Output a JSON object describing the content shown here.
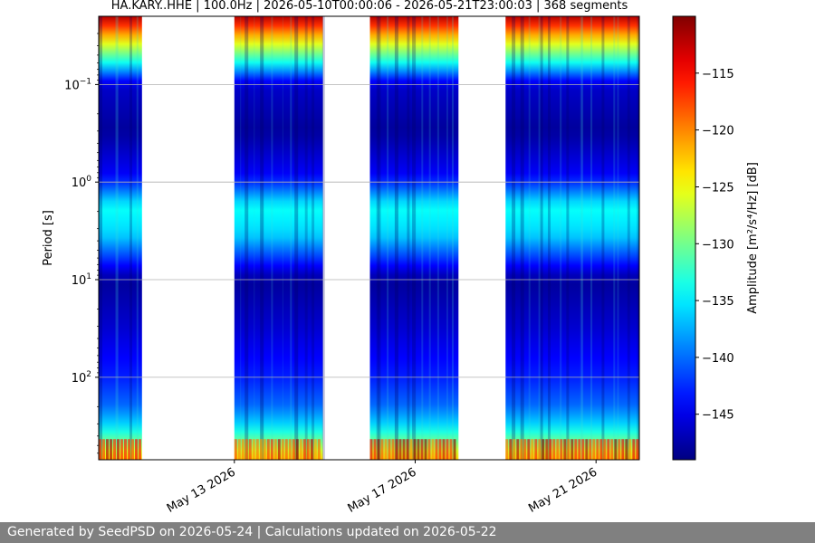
{
  "chart_data": {
    "type": "heatmap",
    "title": "HA.KARY..HHE | 100.0Hz | 2026-05-10T00:00:06 - 2026-05-21T23:00:03 | 368 segments",
    "xlabel": "",
    "ylabel": "Period [s]",
    "colorbar_label": "Amplitude [m²/s⁴/Hz] [dB]",
    "colormap": "jet",
    "x_ticks": [
      "May 13 2026",
      "May 17 2026",
      "May 21 2026"
    ],
    "x_tick_dates": [
      "2026-05-13",
      "2026-05-17",
      "2026-05-21"
    ],
    "x_range": [
      "2026-05-10T00:00:06",
      "2026-05-21T23:00:03"
    ],
    "y_scale": "log",
    "y_range_period_s": [
      0.02,
      700
    ],
    "y_inverted": true,
    "y_ticks": [
      {
        "value": 0.1,
        "base": "10",
        "exp": "−1"
      },
      {
        "value": 1,
        "base": "10",
        "exp": "0"
      },
      {
        "value": 10,
        "base": "10",
        "exp": "1"
      },
      {
        "value": 100,
        "base": "10",
        "exp": "2"
      }
    ],
    "colorbar_range_db": [
      -149,
      -110
    ],
    "colorbar_ticks": [
      "−115",
      "−120",
      "−125",
      "−130",
      "−135",
      "−140",
      "−145"
    ],
    "colorbar_tick_values": [
      -115,
      -120,
      -125,
      -130,
      -135,
      -140,
      -145
    ],
    "grid": true,
    "data_blocks": [
      {
        "start": "2026-05-10",
        "end": "2026-05-10T23:00"
      },
      {
        "start": "2026-05-13",
        "end": "2026-05-14T23:00"
      },
      {
        "start": "2026-05-16",
        "end": "2026-05-17T23:00"
      },
      {
        "start": "2026-05-19",
        "end": "2026-05-21T23:00"
      }
    ],
    "noise_profile": {
      "period_s": [
        0.02,
        0.035,
        0.06,
        0.1,
        0.3,
        0.9,
        1.8,
        3.5,
        6,
        10,
        30,
        100,
        200,
        300,
        430,
        700
      ],
      "amplitude_db": [
        -112,
        -124,
        -134,
        -146,
        -148,
        -144,
        -134,
        -136,
        -142,
        -148,
        -146,
        -143,
        -140,
        -136,
        -131,
        -123
      ]
    }
  },
  "footer": {
    "text": "Generated by SeedPSD on 2026-05-24 | Calculations updated on 2026-05-22"
  }
}
